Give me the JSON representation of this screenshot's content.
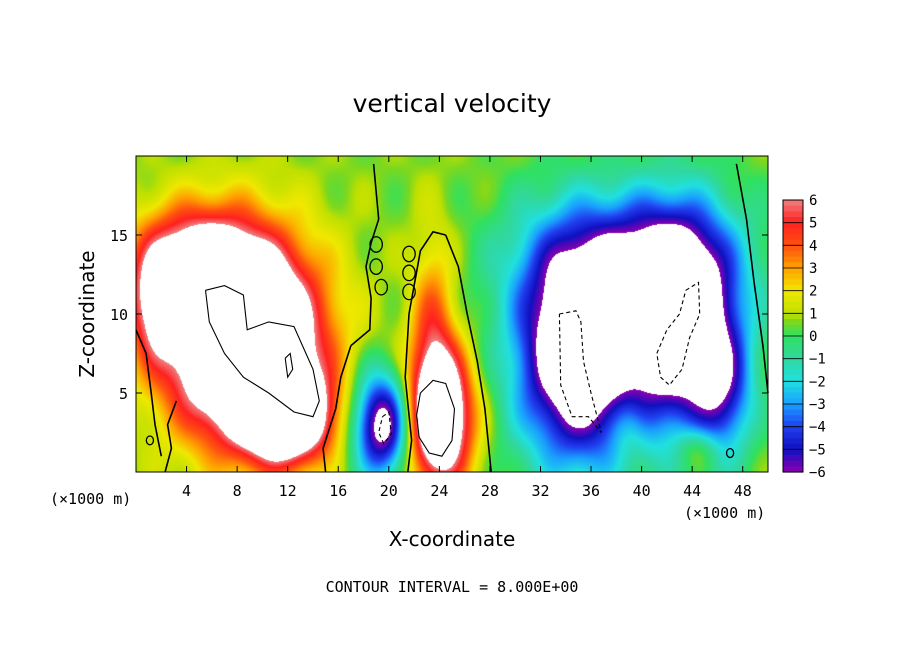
{
  "chart_data": {
    "type": "heatmap",
    "title": "vertical velocity",
    "xlabel": "X-coordinate",
    "ylabel": "Z-coordinate",
    "x_unit_left": "(×1000 m)",
    "x_unit_right": "(×1000 m)",
    "footer": "CONTOUR INTERVAL = 8.000E+00",
    "xlim": [
      0,
      50
    ],
    "ylim": [
      0,
      20
    ],
    "x_ticks": [
      4,
      8,
      12,
      16,
      20,
      24,
      28,
      32,
      36,
      40,
      44,
      48
    ],
    "y_ticks": [
      5,
      10,
      15
    ],
    "colorbar": {
      "ticks": [
        6,
        5,
        4,
        3,
        2,
        1,
        0,
        -1,
        -2,
        -3,
        -4,
        -5,
        -6
      ],
      "tick_labels": [
        "6",
        "5",
        "4",
        "3",
        "2",
        "1",
        "0",
        "−1",
        "−2",
        "−3",
        "−4",
        "−5",
        "−6"
      ],
      "range": [
        -6,
        6
      ],
      "saturation_color": "#ffffff"
    },
    "colorscale": [
      [
        -6,
        "#8a00b0"
      ],
      [
        -5,
        "#1010c0"
      ],
      [
        -4,
        "#2040f0"
      ],
      [
        -3,
        "#1aa0ff"
      ],
      [
        -2,
        "#20e0e0"
      ],
      [
        -1,
        "#30d8a0"
      ],
      [
        0,
        "#30e060"
      ],
      [
        0.6,
        "#7ad820"
      ],
      [
        1,
        "#c0e000"
      ],
      [
        2,
        "#f0e800"
      ],
      [
        3,
        "#ffa000"
      ],
      [
        4,
        "#ff5010"
      ],
      [
        5,
        "#ff2020"
      ],
      [
        6,
        "#f08080"
      ]
    ],
    "features": [
      {
        "kind": "updraft",
        "x": 8.5,
        "z": 8.5,
        "sx": 4.0,
        "sz": 4.2,
        "peak": 14
      },
      {
        "kind": "updraft",
        "x": 4.5,
        "z": 13.5,
        "sx": 3.2,
        "sz": 2.3,
        "peak": 5
      },
      {
        "kind": "updraft",
        "x": 12.0,
        "z": 3.5,
        "sx": 2.4,
        "sz": 2.0,
        "peak": 9
      },
      {
        "kind": "updraft",
        "x": 1.5,
        "z": 10.5,
        "sx": 1.5,
        "sz": 2.5,
        "peak": 4
      },
      {
        "kind": "updraft",
        "x": 24.0,
        "z": 3.5,
        "sx": 1.8,
        "sz": 3.0,
        "peak": 10
      },
      {
        "kind": "updraft",
        "x": 23.5,
        "z": 9.5,
        "sx": 1.2,
        "sz": 4.0,
        "peak": 3
      },
      {
        "kind": "downdraft",
        "x": 19.5,
        "z": 3.0,
        "sx": 1.6,
        "sz": 2.3,
        "peak": -8
      },
      {
        "kind": "downdraft",
        "x": 35.0,
        "z": 7.5,
        "sx": 3.4,
        "sz": 4.8,
        "peak": -10
      },
      {
        "kind": "downdraft",
        "x": 43.0,
        "z": 9.5,
        "sx": 3.0,
        "sz": 4.5,
        "peak": -10
      },
      {
        "kind": "downdraft",
        "x": 39.0,
        "z": 13.5,
        "sx": 6.0,
        "sz": 3.0,
        "peak": -4
      },
      {
        "kind": "downdraft",
        "x": 46.5,
        "z": 5.0,
        "sx": 1.6,
        "sz": 3.0,
        "peak": -4
      },
      {
        "kind": "updraft",
        "x": 39.0,
        "z": 3.0,
        "sx": 1.0,
        "sz": 1.5,
        "peak": 1.5
      },
      {
        "kind": "updraft",
        "x": 44.5,
        "z": 1.5,
        "sx": 1.2,
        "sz": 1.0,
        "peak": 2
      }
    ],
    "contours": [
      {
        "level": 0,
        "style": "solid",
        "x": [
          0,
          0.8,
          1.2,
          1.5,
          2.0
        ],
        "z": [
          9.0,
          7.5,
          5.0,
          3.0,
          1.0
        ]
      },
      {
        "level": 0,
        "style": "solid",
        "x": [
          2.3,
          2.8,
          2.5,
          3.2
        ],
        "z": [
          0.0,
          1.5,
          3.0,
          4.5
        ]
      },
      {
        "level": 0,
        "style": "solid",
        "x": [
          15.0,
          14.8,
          15.8,
          16.2,
          17.0
        ],
        "z": [
          0.0,
          1.5,
          4.0,
          6.0,
          8.0
        ]
      },
      {
        "level": 0,
        "style": "solid",
        "x": [
          17.0,
          18.5,
          18.6,
          18.2,
          18.6,
          19.2,
          18.8
        ],
        "z": [
          8.0,
          9.0,
          11.0,
          13.0,
          14.5,
          16.0,
          19.5
        ]
      },
      {
        "level": 0,
        "style": "solid",
        "x": [
          21.5,
          21.8,
          21.3,
          21.6,
          22.5,
          23.5,
          24.5
        ],
        "z": [
          0.0,
          2.0,
          6.0,
          10.0,
          14.0,
          15.2,
          15.0
        ]
      },
      {
        "level": 0,
        "style": "solid",
        "x": [
          24.5,
          25.5,
          26.2,
          27.0,
          27.6,
          28.1
        ],
        "z": [
          15.0,
          13.0,
          10.0,
          7.0,
          4.0,
          0.0
        ]
      },
      {
        "level": 0,
        "style": "solid",
        "x": [
          47.5,
          48.3,
          48.9,
          49.6,
          50.0
        ],
        "z": [
          19.5,
          16.0,
          12.0,
          8.0,
          5.0
        ]
      },
      {
        "level": 8,
        "style": "solid",
        "x": [
          5.5,
          7.0,
          8.5,
          8.8,
          10.5,
          12.5,
          14.0,
          14.5,
          14.0,
          12.5,
          10.5,
          8.5,
          7.0,
          5.8,
          5.5
        ],
        "z": [
          11.5,
          11.8,
          11.2,
          9.0,
          9.5,
          9.2,
          6.5,
          4.5,
          3.5,
          3.8,
          5.0,
          6.0,
          7.5,
          9.5,
          11.5
        ]
      },
      {
        "level": 8,
        "style": "solid",
        "x": [
          22.5,
          23.5,
          24.5,
          25.2,
          25.0,
          24.2,
          23.2,
          22.4,
          22.2,
          22.5
        ],
        "z": [
          5.0,
          5.8,
          5.6,
          4.0,
          2.0,
          1.0,
          1.2,
          2.2,
          3.6,
          5.0
        ]
      },
      {
        "level": 8,
        "style": "solid",
        "x": [
          11.8,
          12.2,
          12.4,
          12.0,
          11.8
        ],
        "z": [
          7.2,
          7.5,
          6.5,
          6.0,
          7.2
        ]
      },
      {
        "level": -8,
        "style": "dashed",
        "x": [
          33.5,
          34.8,
          35.2,
          35.4,
          36.0,
          36.8,
          35.8,
          34.5,
          33.6,
          33.5
        ],
        "z": [
          10.0,
          10.2,
          9.5,
          7.0,
          5.0,
          2.5,
          3.5,
          3.5,
          5.5,
          10.0
        ]
      },
      {
        "level": -8,
        "style": "dashed",
        "x": [
          43.5,
          44.5,
          44.6,
          43.8,
          43.2,
          42.2,
          41.5,
          41.2,
          42.0,
          43.0,
          43.5
        ],
        "z": [
          11.5,
          12.0,
          10.0,
          8.5,
          6.5,
          5.5,
          6.0,
          7.5,
          9.0,
          10.0,
          11.5
        ]
      },
      {
        "level": -8,
        "style": "dashed",
        "x": [
          19.5,
          20.0,
          20.2,
          19.6,
          19.2,
          19.5
        ],
        "z": [
          3.5,
          3.8,
          2.4,
          1.8,
          2.5,
          3.5
        ]
      }
    ],
    "small_contours": [
      {
        "x": 19.0,
        "z": 14.4,
        "r": 0.35
      },
      {
        "x": 19.0,
        "z": 13.0,
        "r": 0.35
      },
      {
        "x": 19.4,
        "z": 11.7,
        "r": 0.35
      },
      {
        "x": 21.6,
        "z": 13.8,
        "r": 0.35
      },
      {
        "x": 21.6,
        "z": 12.6,
        "r": 0.35
      },
      {
        "x": 21.6,
        "z": 11.4,
        "r": 0.35
      },
      {
        "x": 1.1,
        "z": 2.0,
        "r": 0.2
      },
      {
        "x": 47.0,
        "z": 1.2,
        "r": 0.2
      }
    ]
  }
}
